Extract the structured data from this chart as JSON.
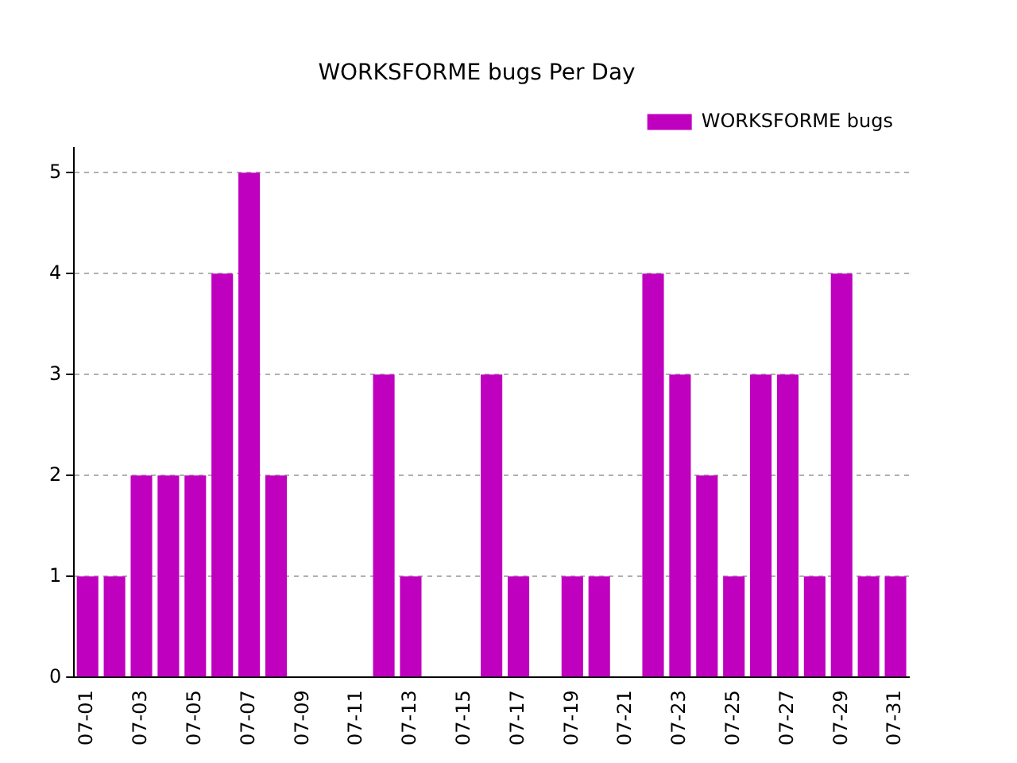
{
  "chart_data": {
    "type": "bar",
    "title": "WORKSFORME bugs Per Day",
    "categories": [
      "07-01",
      null,
      "07-03",
      null,
      "07-05",
      null,
      "07-07",
      null,
      "07-09",
      null,
      "07-11",
      null,
      "07-13",
      null,
      "07-15",
      null,
      "07-17",
      null,
      "07-19",
      null,
      "07-21",
      null,
      "07-23",
      null,
      "07-25",
      null,
      "07-27",
      null,
      "07-29",
      null,
      "07-31"
    ],
    "series": [
      {
        "name": "WORKSFORME bugs",
        "color": "#bf00bf",
        "values": [
          1,
          1,
          2,
          2,
          2,
          4,
          5,
          2,
          0,
          0,
          0,
          3,
          1,
          0,
          0,
          3,
          1,
          0,
          1,
          1,
          0,
          4,
          3,
          2,
          1,
          3,
          3,
          1,
          4,
          1,
          1
        ]
      }
    ],
    "ylim": [
      0,
      5.25
    ],
    "yticks": [
      0,
      1,
      2,
      3,
      4,
      5
    ],
    "grid": "y",
    "legend": "top right"
  }
}
